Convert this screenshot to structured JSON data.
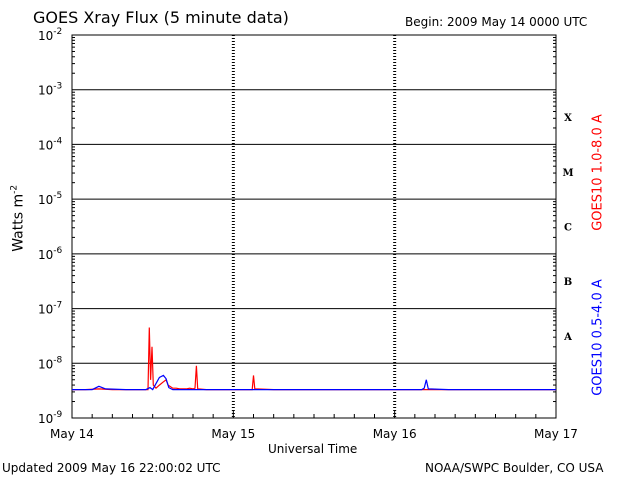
{
  "header": {
    "title": "GOES Xray Flux (5 minute data)",
    "begin": "Begin:  2009 May 14 0000 UTC"
  },
  "footer": {
    "updated": "Updated 2009 May 16 22:00:02 UTC",
    "credit": "NOAA/SWPC Boulder, CO USA"
  },
  "chart_data": {
    "type": "line",
    "title": "GOES Xray Flux (5 minute data)",
    "xlabel": "Universal Time",
    "ylabel": "Watts m",
    "ylabel_superscript": "-2",
    "yscale": "log",
    "ylim": [
      1e-09,
      0.01
    ],
    "xlim_hours": [
      0,
      72
    ],
    "x_tick_labels": [
      "May 14",
      "May 15",
      "May 16",
      "May 17"
    ],
    "y_tick_labels": [
      {
        "base": "10",
        "exp": "-2"
      },
      {
        "base": "10",
        "exp": "-3"
      },
      {
        "base": "10",
        "exp": "-4"
      },
      {
        "base": "10",
        "exp": "-5"
      },
      {
        "base": "10",
        "exp": "-6"
      },
      {
        "base": "10",
        "exp": "-7"
      },
      {
        "base": "10",
        "exp": "-8"
      },
      {
        "base": "10",
        "exp": "-9"
      }
    ],
    "flare_classes": [
      "X",
      "M",
      "C",
      "B",
      "A"
    ],
    "grid": "horizontal decade lines",
    "series": [
      {
        "name": "GOES10 1.0-8.0 A",
        "color": "#ff0000",
        "points": [
          [
            0,
            3.3e-09
          ],
          [
            2,
            3.3e-09
          ],
          [
            4,
            3.4e-09
          ],
          [
            6,
            3.3e-09
          ],
          [
            8,
            3.3e-09
          ],
          [
            10,
            3.3e-09
          ],
          [
            11.3,
            3.3e-09
          ],
          [
            11.5,
            4.5e-08
          ],
          [
            11.7,
            5e-09
          ],
          [
            11.9,
            2e-08
          ],
          [
            12.1,
            4e-09
          ],
          [
            12.5,
            3.5e-09
          ],
          [
            13,
            4e-09
          ],
          [
            13.5,
            4.5e-09
          ],
          [
            14,
            5e-09
          ],
          [
            14.3,
            4e-09
          ],
          [
            15,
            3.5e-09
          ],
          [
            15.5,
            3.5e-09
          ],
          [
            16,
            3.4e-09
          ],
          [
            17,
            3.4e-09
          ],
          [
            17.5,
            3.5e-09
          ],
          [
            18,
            3.4e-09
          ],
          [
            18.3,
            3.5e-09
          ],
          [
            18.5,
            9e-09
          ],
          [
            18.7,
            3.4e-09
          ],
          [
            20,
            3.3e-09
          ],
          [
            24,
            3.3e-09
          ],
          [
            26,
            3.3e-09
          ],
          [
            26.8,
            3.3e-09
          ],
          [
            27,
            6e-09
          ],
          [
            27.2,
            3.4e-09
          ],
          [
            30,
            3.3e-09
          ],
          [
            36,
            3.3e-09
          ],
          [
            40,
            3.3e-09
          ],
          [
            44,
            3.3e-09
          ],
          [
            48,
            3.3e-09
          ],
          [
            52,
            3.3e-09
          ],
          [
            56,
            3.3e-09
          ],
          [
            60,
            3.3e-09
          ],
          [
            66,
            3.3e-09
          ],
          [
            72,
            3.3e-09
          ]
        ]
      },
      {
        "name": "GOES10 0.5-4.0 A",
        "color": "#0000ff",
        "points": [
          [
            0,
            3.3e-09
          ],
          [
            3,
            3.3e-09
          ],
          [
            4,
            3.8e-09
          ],
          [
            5,
            3.4e-09
          ],
          [
            8,
            3.3e-09
          ],
          [
            11,
            3.3e-09
          ],
          [
            11.6,
            3.6e-09
          ],
          [
            12,
            3.3e-09
          ],
          [
            12.6,
            4.5e-09
          ],
          [
            13,
            5.5e-09
          ],
          [
            13.6,
            6e-09
          ],
          [
            14,
            5.2e-09
          ],
          [
            14.4,
            3.6e-09
          ],
          [
            15,
            3.3e-09
          ],
          [
            20,
            3.3e-09
          ],
          [
            24,
            3.3e-09
          ],
          [
            30,
            3.3e-09
          ],
          [
            36,
            3.3e-09
          ],
          [
            42,
            3.3e-09
          ],
          [
            48,
            3.3e-09
          ],
          [
            50,
            3.3e-09
          ],
          [
            52,
            3.3e-09
          ],
          [
            52.4,
            3.5e-09
          ],
          [
            52.7,
            5e-09
          ],
          [
            53,
            3.4e-09
          ],
          [
            56,
            3.3e-09
          ],
          [
            60,
            3.3e-09
          ],
          [
            66,
            3.3e-09
          ],
          [
            72,
            3.3e-09
          ]
        ]
      }
    ]
  }
}
